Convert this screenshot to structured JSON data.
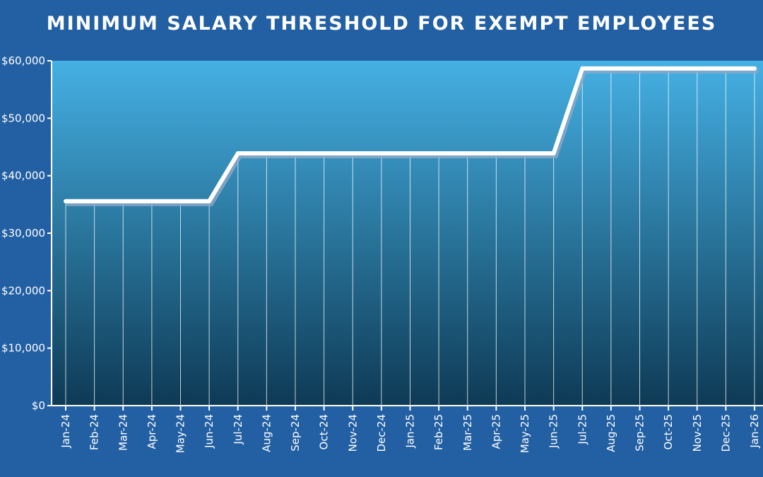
{
  "chart_data": {
    "type": "line",
    "title": "MINIMUM SALARY THRESHOLD FOR EXEMPT EMPLOYEES",
    "xlabel": "",
    "ylabel": "",
    "ylim": [
      0,
      60000
    ],
    "y_ticks": [
      "$0",
      "$10,000",
      "$20,000",
      "$30,000",
      "$40,000",
      "$50,000",
      "$60,000"
    ],
    "grid": "vertical drop lines from each point",
    "categories": [
      "Jan-24",
      "Feb-24",
      "Mar-24",
      "Apr-24",
      "May-24",
      "Jun-24",
      "Jul-24",
      "Aug-24",
      "Sep-24",
      "Oct-24",
      "Nov-24",
      "Dec-24",
      "Jan-25",
      "Feb-25",
      "Mar-25",
      "Apr-25",
      "May-25",
      "Jun-25",
      "Jul-25",
      "Aug-25",
      "Sep-25",
      "Oct-25",
      "Nov-25",
      "Dec-25",
      "Jan-26"
    ],
    "series": [
      {
        "values": [
          35568,
          35568,
          35568,
          35568,
          35568,
          35568,
          43888,
          43888,
          43888,
          43888,
          43888,
          43888,
          43888,
          43888,
          43888,
          43888,
          43888,
          43888,
          58656,
          58656,
          58656,
          58656,
          58656,
          58656,
          58656
        ]
      }
    ],
    "colors": {
      "background": "#2360a3",
      "plot_top": "#45b0e3",
      "plot_bottom": "#0e3a55",
      "line": "#ffffff"
    }
  }
}
